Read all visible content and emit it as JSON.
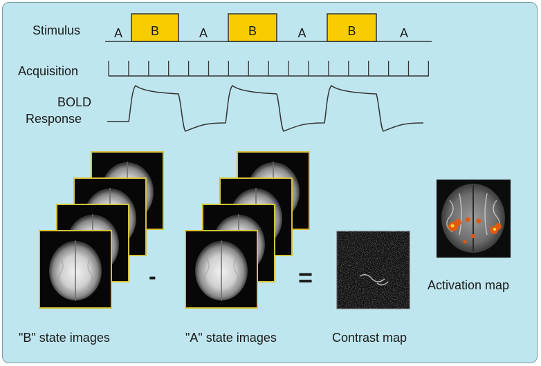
{
  "labels": {
    "stimulus": "Stimulus",
    "acquisition": "Acquisition",
    "bold_line1": "BOLD",
    "bold_line2": "Response",
    "b_state": "\"B\" state images",
    "a_state": "\"A\" state images",
    "contrast": "Contrast map",
    "activation": "Activation map",
    "minus": "-",
    "equals": "="
  },
  "stimulus_blocks": [
    "A",
    "B",
    "A",
    "B",
    "A",
    "B",
    "A"
  ],
  "colors": {
    "background": "#bfe6ee",
    "b_block": "#f7cd00",
    "frame_border": "#d6c23a",
    "activation_hot": "#e05a10"
  }
}
